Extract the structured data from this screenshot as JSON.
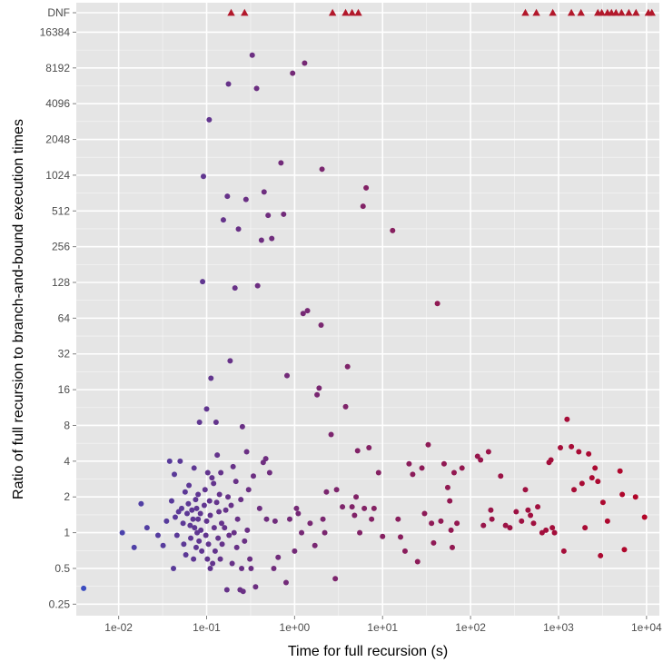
{
  "chart_data": {
    "type": "scatter",
    "title": "",
    "xlabel": "Time for full recursion (s)",
    "ylabel": "Ratio of full recursion to branch-and-bound execution times",
    "x_scale": "log10",
    "y_scale": "log2",
    "xlim": [
      0.0033,
      14000
    ],
    "ylim": [
      0.2,
      29000
    ],
    "x_ticks": [
      {
        "value": 0.01,
        "label": "1e-02"
      },
      {
        "value": 0.1,
        "label": "1e-01"
      },
      {
        "value": 1,
        "label": "1e+00"
      },
      {
        "value": 10,
        "label": "1e+01"
      },
      {
        "value": 100,
        "label": "1e+02"
      },
      {
        "value": 1000,
        "label": "1e+03"
      },
      {
        "value": 10000,
        "label": "1e+04"
      }
    ],
    "y_ticks": [
      {
        "value": 0.25,
        "label": "0.25"
      },
      {
        "value": 0.5,
        "label": "0.5"
      },
      {
        "value": 1,
        "label": "1"
      },
      {
        "value": 2,
        "label": "2"
      },
      {
        "value": 4,
        "label": "4"
      },
      {
        "value": 8,
        "label": "8"
      },
      {
        "value": 16,
        "label": "16"
      },
      {
        "value": 32,
        "label": "32"
      },
      {
        "value": 64,
        "label": "64"
      },
      {
        "value": 128,
        "label": "128"
      },
      {
        "value": 256,
        "label": "256"
      },
      {
        "value": 512,
        "label": "512"
      },
      {
        "value": 1024,
        "label": "1024"
      },
      {
        "value": 2048,
        "label": "2048"
      },
      {
        "value": 4096,
        "label": "4096"
      },
      {
        "value": 8192,
        "label": "8192"
      },
      {
        "value": 16384,
        "label": "16384"
      }
    ],
    "dnf_label": "DNF",
    "grid": true,
    "colors": {
      "panel": "#e5e5e5",
      "grid": "#ffffff",
      "low": "#3b4cc0",
      "high": "#b40426",
      "dnf_marker": "#b2182b"
    },
    "color_encoding": "x",
    "dnf_x": [
      0.19,
      0.27,
      2.7,
      3.8,
      4.5,
      5.3,
      860,
      420,
      560,
      1400,
      1800,
      2800,
      3100,
      3600,
      4000,
      4500,
      5200,
      6300,
      7600,
      10500,
      11500
    ],
    "points": [
      [
        0.004,
        0.34
      ],
      [
        0.011,
        1.0
      ],
      [
        0.015,
        0.75
      ],
      [
        0.018,
        1.75
      ],
      [
        0.021,
        1.1
      ],
      [
        0.028,
        0.95
      ],
      [
        0.032,
        0.78
      ],
      [
        0.035,
        1.25
      ],
      [
        0.038,
        4.0
      ],
      [
        0.04,
        1.85
      ],
      [
        0.042,
        0.5
      ],
      [
        0.043,
        3.1
      ],
      [
        0.044,
        1.35
      ],
      [
        0.046,
        0.95
      ],
      [
        0.048,
        1.5
      ],
      [
        0.05,
        4.0
      ],
      [
        0.052,
        1.6
      ],
      [
        0.054,
        1.2
      ],
      [
        0.055,
        0.8
      ],
      [
        0.057,
        2.2
      ],
      [
        0.058,
        0.65
      ],
      [
        0.06,
        1.45
      ],
      [
        0.062,
        1.75
      ],
      [
        0.063,
        2.5
      ],
      [
        0.065,
        1.15
      ],
      [
        0.066,
        0.9
      ],
      [
        0.068,
        1.55
      ],
      [
        0.07,
        1.3
      ],
      [
        0.071,
        0.6
      ],
      [
        0.072,
        3.5
      ],
      [
        0.073,
        1.1
      ],
      [
        0.075,
        1.9
      ],
      [
        0.076,
        0.75
      ],
      [
        0.077,
        1.6
      ],
      [
        0.078,
        1.0
      ],
      [
        0.08,
        2.1
      ],
      [
        0.08,
        1.3
      ],
      [
        0.082,
        0.85
      ],
      [
        0.083,
        8.5
      ],
      [
        0.085,
        1.45
      ],
      [
        0.086,
        1.05
      ],
      [
        0.088,
        0.7
      ],
      [
        0.09,
        130
      ],
      [
        0.092,
        1000
      ],
      [
        0.094,
        1.7
      ],
      [
        0.096,
        2.3
      ],
      [
        0.098,
        0.95
      ],
      [
        0.1,
        11
      ],
      [
        0.1,
        1.25
      ],
      [
        0.102,
        0.6
      ],
      [
        0.103,
        3.2
      ],
      [
        0.105,
        0.8
      ],
      [
        0.107,
        3000
      ],
      [
        0.108,
        1.85
      ],
      [
        0.11,
        0.5
      ],
      [
        0.11,
        1.4
      ],
      [
        0.112,
        20
      ],
      [
        0.115,
        2.9
      ],
      [
        0.117,
        0.55
      ],
      [
        0.12,
        2.6
      ],
      [
        0.122,
        1.1
      ],
      [
        0.125,
        0.7
      ],
      [
        0.128,
        8.5
      ],
      [
        0.13,
        1.8
      ],
      [
        0.132,
        4.5
      ],
      [
        0.135,
        0.9
      ],
      [
        0.138,
        1.5
      ],
      [
        0.14,
        2.1
      ],
      [
        0.143,
        0.6
      ],
      [
        0.145,
        3.2
      ],
      [
        0.148,
        1.2
      ],
      [
        0.15,
        0.8
      ],
      [
        0.155,
        430
      ],
      [
        0.16,
        1.1
      ],
      [
        0.165,
        1.55
      ],
      [
        0.17,
        0.33
      ],
      [
        0.172,
        680
      ],
      [
        0.175,
        2.0
      ],
      [
        0.177,
        6000
      ],
      [
        0.18,
        0.95
      ],
      [
        0.185,
        28
      ],
      [
        0.19,
        1.7
      ],
      [
        0.195,
        0.55
      ],
      [
        0.2,
        3.6
      ],
      [
        0.205,
        1.0
      ],
      [
        0.21,
        115
      ],
      [
        0.215,
        2.7
      ],
      [
        0.22,
        0.75
      ],
      [
        0.225,
        1.3
      ],
      [
        0.23,
        360
      ],
      [
        0.24,
        0.33
      ],
      [
        0.245,
        1.9
      ],
      [
        0.25,
        0.5
      ],
      [
        0.255,
        7.8
      ],
      [
        0.26,
        0.32
      ],
      [
        0.27,
        0.85
      ],
      [
        0.28,
        640
      ],
      [
        0.285,
        4.8
      ],
      [
        0.29,
        1.05
      ],
      [
        0.3,
        2.3
      ],
      [
        0.31,
        0.6
      ],
      [
        0.32,
        0.5
      ],
      [
        0.33,
        10500
      ],
      [
        0.34,
        3.0
      ],
      [
        0.36,
        0.35
      ],
      [
        0.37,
        5500
      ],
      [
        0.38,
        120
      ],
      [
        0.4,
        1.6
      ],
      [
        0.42,
        290
      ],
      [
        0.44,
        3.9
      ],
      [
        0.45,
        740
      ],
      [
        0.47,
        4.2
      ],
      [
        0.48,
        1.3
      ],
      [
        0.5,
        470
      ],
      [
        0.52,
        3.2
      ],
      [
        0.55,
        300
      ],
      [
        0.58,
        0.5
      ],
      [
        0.6,
        1.25
      ],
      [
        0.65,
        0.62
      ],
      [
        0.7,
        1300
      ],
      [
        0.75,
        480
      ],
      [
        0.8,
        0.38
      ],
      [
        0.82,
        21
      ],
      [
        0.88,
        1.3
      ],
      [
        0.95,
        7400
      ],
      [
        1.0,
        0.7
      ],
      [
        1.05,
        1.6
      ],
      [
        1.1,
        1.45
      ],
      [
        1.2,
        1.0
      ],
      [
        1.25,
        70
      ],
      [
        1.3,
        9000
      ],
      [
        1.4,
        74
      ],
      [
        1.5,
        1.2
      ],
      [
        1.7,
        0.78
      ],
      [
        1.8,
        14.5
      ],
      [
        1.9,
        16.5
      ],
      [
        2.0,
        56
      ],
      [
        2.05,
        1150
      ],
      [
        2.1,
        1.3
      ],
      [
        2.2,
        1.0
      ],
      [
        2.3,
        2.2
      ],
      [
        2.6,
        6.7
      ],
      [
        2.9,
        0.41
      ],
      [
        3.0,
        2.3
      ],
      [
        3.5,
        1.65
      ],
      [
        3.8,
        11.5
      ],
      [
        4.0,
        25
      ],
      [
        4.5,
        1.65
      ],
      [
        4.8,
        1.4
      ],
      [
        5.0,
        2.0
      ],
      [
        5.2,
        4.9
      ],
      [
        5.5,
        1.0
      ],
      [
        6.0,
        560
      ],
      [
        6.2,
        1.6
      ],
      [
        6.5,
        800
      ],
      [
        7.0,
        5.2
      ],
      [
        7.5,
        1.3
      ],
      [
        8.0,
        1.6
      ],
      [
        9.0,
        3.2
      ],
      [
        10,
        0.93
      ],
      [
        13,
        350
      ],
      [
        15,
        1.3
      ],
      [
        16,
        0.92
      ],
      [
        18,
        0.7
      ],
      [
        20,
        3.8
      ],
      [
        22,
        3.1
      ],
      [
        25,
        0.57
      ],
      [
        28,
        3.5
      ],
      [
        30,
        1.45
      ],
      [
        33,
        5.5
      ],
      [
        36,
        1.2
      ],
      [
        38,
        0.82
      ],
      [
        42,
        85
      ],
      [
        46,
        1.25
      ],
      [
        50,
        3.8
      ],
      [
        55,
        2.4
      ],
      [
        58,
        1.85
      ],
      [
        60,
        1.05
      ],
      [
        62,
        0.75
      ],
      [
        65,
        3.2
      ],
      [
        70,
        1.2
      ],
      [
        80,
        3.5
      ],
      [
        120,
        4.4
      ],
      [
        130,
        4.1
      ],
      [
        140,
        1.15
      ],
      [
        160,
        4.8
      ],
      [
        170,
        1.55
      ],
      [
        175,
        1.3
      ],
      [
        220,
        3.0
      ],
      [
        250,
        1.15
      ],
      [
        280,
        1.1
      ],
      [
        330,
        1.5
      ],
      [
        380,
        1.25
      ],
      [
        420,
        2.3
      ],
      [
        450,
        1.55
      ],
      [
        480,
        1.4
      ],
      [
        520,
        1.2
      ],
      [
        580,
        1.65
      ],
      [
        650,
        1.0
      ],
      [
        720,
        1.05
      ],
      [
        780,
        3.9
      ],
      [
        820,
        4.1
      ],
      [
        850,
        1.1
      ],
      [
        900,
        1.0
      ],
      [
        1050,
        5.2
      ],
      [
        1150,
        0.7
      ],
      [
        1250,
        9.0
      ],
      [
        1400,
        5.3
      ],
      [
        1500,
        2.3
      ],
      [
        1700,
        4.8
      ],
      [
        1850,
        2.6
      ],
      [
        2000,
        1.1
      ],
      [
        2200,
        4.6
      ],
      [
        2400,
        2.9
      ],
      [
        2600,
        3.5
      ],
      [
        2800,
        2.7
      ],
      [
        3000,
        0.64
      ],
      [
        3200,
        1.8
      ],
      [
        3600,
        1.25
      ],
      [
        5000,
        3.3
      ],
      [
        5300,
        2.1
      ],
      [
        5600,
        0.72
      ],
      [
        7500,
        2.0
      ],
      [
        9500,
        1.35
      ]
    ]
  }
}
